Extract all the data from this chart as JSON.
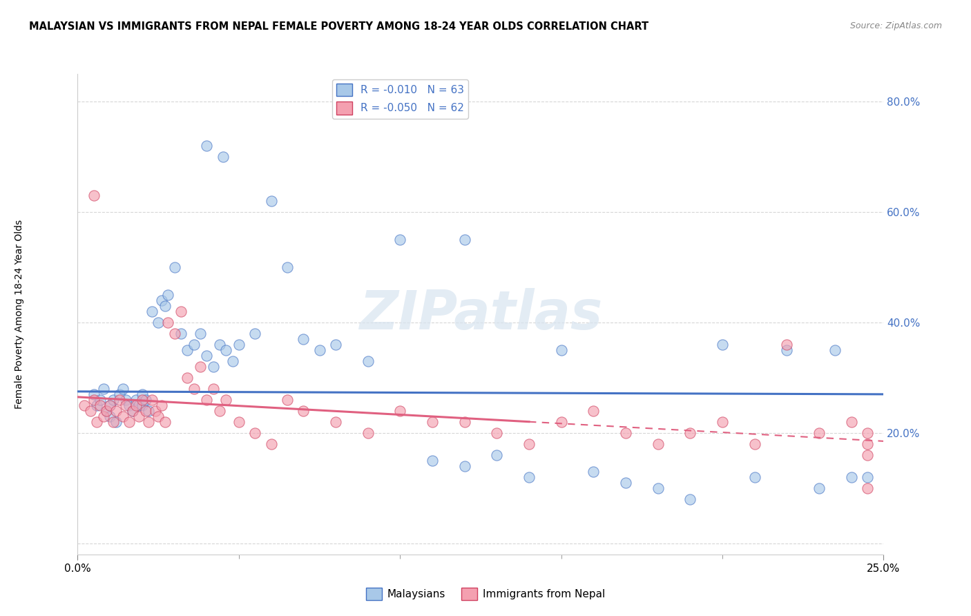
{
  "title": "MALAYSIAN VS IMMIGRANTS FROM NEPAL FEMALE POVERTY AMONG 18-24 YEAR OLDS CORRELATION CHART",
  "source": "Source: ZipAtlas.com",
  "ylabel": "Female Poverty Among 18-24 Year Olds",
  "xlim": [
    0.0,
    0.25
  ],
  "ylim": [
    -0.02,
    0.85
  ],
  "yticks": [
    0.0,
    0.2,
    0.4,
    0.6,
    0.8
  ],
  "ytick_labels": [
    "",
    "20.0%",
    "40.0%",
    "60.0%",
    "80.0%"
  ],
  "xtick_left_label": "0.0%",
  "xtick_right_label": "25.0%",
  "legend_r1": "R = -0.010",
  "legend_n1": "N = 63",
  "legend_r2": "R = -0.050",
  "legend_n2": "N = 62",
  "color_blue_fill": "#a8c8e8",
  "color_blue_edge": "#4472c4",
  "color_pink_fill": "#f4a0b0",
  "color_pink_edge": "#d04060",
  "color_blue_line": "#4472c4",
  "color_pink_line": "#e06080",
  "watermark_color": "#d8e4f0",
  "grid_color": "#cccccc",
  "tick_color_right": "#4472c4",
  "background": "#ffffff",
  "mal_x": [
    0.005,
    0.006,
    0.007,
    0.008,
    0.009,
    0.01,
    0.01,
    0.011,
    0.012,
    0.013,
    0.014,
    0.015,
    0.016,
    0.017,
    0.018,
    0.019,
    0.02,
    0.02,
    0.021,
    0.022,
    0.023,
    0.025,
    0.026,
    0.027,
    0.028,
    0.03,
    0.032,
    0.034,
    0.036,
    0.038,
    0.04,
    0.042,
    0.044,
    0.046,
    0.048,
    0.05,
    0.055,
    0.06,
    0.065,
    0.07,
    0.075,
    0.08,
    0.09,
    0.1,
    0.11,
    0.12,
    0.13,
    0.14,
    0.15,
    0.16,
    0.17,
    0.18,
    0.19,
    0.2,
    0.21,
    0.22,
    0.23,
    0.235,
    0.24,
    0.245,
    0.04,
    0.045,
    0.12
  ],
  "mal_y": [
    0.27,
    0.25,
    0.26,
    0.28,
    0.24,
    0.25,
    0.23,
    0.26,
    0.22,
    0.27,
    0.28,
    0.26,
    0.25,
    0.24,
    0.26,
    0.25,
    0.27,
    0.25,
    0.26,
    0.24,
    0.42,
    0.4,
    0.44,
    0.43,
    0.45,
    0.5,
    0.38,
    0.35,
    0.36,
    0.38,
    0.34,
    0.32,
    0.36,
    0.35,
    0.33,
    0.36,
    0.38,
    0.62,
    0.5,
    0.37,
    0.35,
    0.36,
    0.33,
    0.55,
    0.15,
    0.14,
    0.16,
    0.12,
    0.35,
    0.13,
    0.11,
    0.1,
    0.08,
    0.36,
    0.12,
    0.35,
    0.1,
    0.35,
    0.12,
    0.12,
    0.72,
    0.7,
    0.55
  ],
  "nep_x": [
    0.002,
    0.004,
    0.005,
    0.006,
    0.007,
    0.008,
    0.009,
    0.01,
    0.011,
    0.012,
    0.013,
    0.014,
    0.015,
    0.016,
    0.017,
    0.018,
    0.019,
    0.02,
    0.021,
    0.022,
    0.023,
    0.024,
    0.025,
    0.026,
    0.027,
    0.028,
    0.03,
    0.032,
    0.034,
    0.036,
    0.038,
    0.04,
    0.042,
    0.044,
    0.046,
    0.05,
    0.055,
    0.06,
    0.065,
    0.07,
    0.08,
    0.09,
    0.1,
    0.11,
    0.12,
    0.13,
    0.14,
    0.15,
    0.16,
    0.17,
    0.18,
    0.19,
    0.2,
    0.21,
    0.22,
    0.23,
    0.24,
    0.245,
    0.245,
    0.245,
    0.005,
    0.245
  ],
  "nep_y": [
    0.25,
    0.24,
    0.26,
    0.22,
    0.25,
    0.23,
    0.24,
    0.25,
    0.22,
    0.24,
    0.26,
    0.23,
    0.25,
    0.22,
    0.24,
    0.25,
    0.23,
    0.26,
    0.24,
    0.22,
    0.26,
    0.24,
    0.23,
    0.25,
    0.22,
    0.4,
    0.38,
    0.42,
    0.3,
    0.28,
    0.32,
    0.26,
    0.28,
    0.24,
    0.26,
    0.22,
    0.2,
    0.18,
    0.26,
    0.24,
    0.22,
    0.2,
    0.24,
    0.22,
    0.22,
    0.2,
    0.18,
    0.22,
    0.24,
    0.2,
    0.18,
    0.2,
    0.22,
    0.18,
    0.36,
    0.2,
    0.22,
    0.16,
    0.18,
    0.2,
    0.63,
    0.1
  ]
}
